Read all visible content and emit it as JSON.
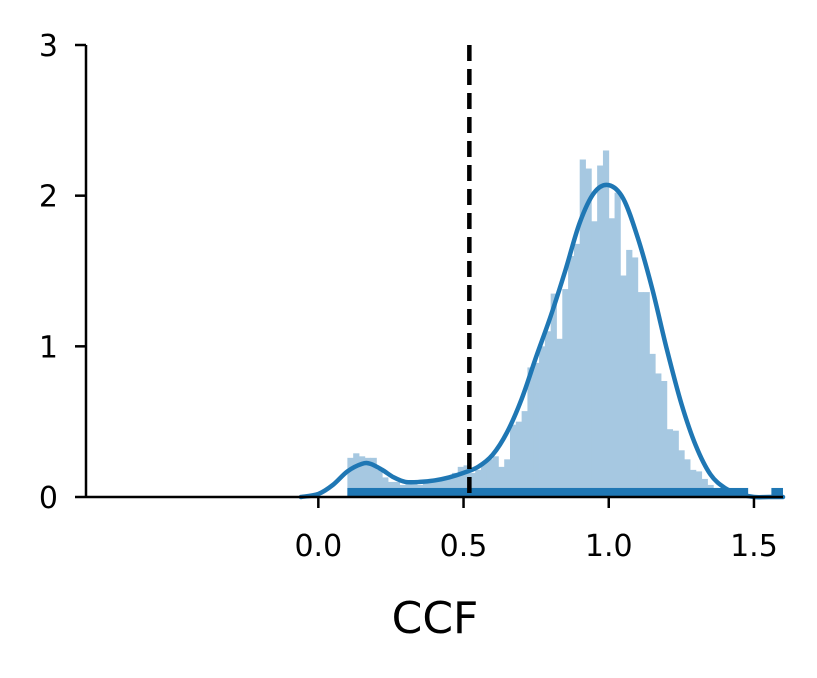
{
  "chart_data": {
    "type": "histogram",
    "title": "",
    "xlabel": "CCF",
    "ylabel": "",
    "xlim": [
      -0.8,
      1.6
    ],
    "ylim": [
      0,
      3
    ],
    "x_ticks": [
      0.0,
      0.5,
      1.0,
      1.5
    ],
    "x_tick_labels": [
      "0.0",
      "0.5",
      "1.0",
      "1.5"
    ],
    "y_ticks": [
      0,
      1,
      2,
      3
    ],
    "y_tick_labels": [
      "0",
      "1",
      "2",
      "3"
    ],
    "grid": false,
    "legend": "none",
    "colors": {
      "hist": "#a6c8e1",
      "kde": "#1f77b4",
      "rug": "#1f77b4",
      "threshold": "#000000"
    },
    "histogram": {
      "bin_width": 0.02,
      "bins": [
        {
          "x": 0.1,
          "y": 0.26
        },
        {
          "x": 0.12,
          "y": 0.29
        },
        {
          "x": 0.14,
          "y": 0.27
        },
        {
          "x": 0.16,
          "y": 0.26
        },
        {
          "x": 0.18,
          "y": 0.26
        },
        {
          "x": 0.2,
          "y": 0.18
        },
        {
          "x": 0.22,
          "y": 0.13
        },
        {
          "x": 0.24,
          "y": 0.1
        },
        {
          "x": 0.26,
          "y": 0.1
        },
        {
          "x": 0.28,
          "y": 0.08
        },
        {
          "x": 0.3,
          "y": 0.09
        },
        {
          "x": 0.32,
          "y": 0.1
        },
        {
          "x": 0.34,
          "y": 0.08
        },
        {
          "x": 0.36,
          "y": 0.1
        },
        {
          "x": 0.38,
          "y": 0.12
        },
        {
          "x": 0.4,
          "y": 0.11
        },
        {
          "x": 0.42,
          "y": 0.12
        },
        {
          "x": 0.44,
          "y": 0.12
        },
        {
          "x": 0.46,
          "y": 0.16
        },
        {
          "x": 0.48,
          "y": 0.2
        },
        {
          "x": 0.5,
          "y": 0.21
        },
        {
          "x": 0.52,
          "y": 0.16
        },
        {
          "x": 0.54,
          "y": 0.18
        },
        {
          "x": 0.56,
          "y": 0.23
        },
        {
          "x": 0.58,
          "y": 0.25
        },
        {
          "x": 0.6,
          "y": 0.27
        },
        {
          "x": 0.62,
          "y": 0.2
        },
        {
          "x": 0.64,
          "y": 0.25
        },
        {
          "x": 0.66,
          "y": 0.48
        },
        {
          "x": 0.68,
          "y": 0.5
        },
        {
          "x": 0.7,
          "y": 0.57
        },
        {
          "x": 0.72,
          "y": 0.86
        },
        {
          "x": 0.74,
          "y": 0.89
        },
        {
          "x": 0.76,
          "y": 1.0
        },
        {
          "x": 0.78,
          "y": 1.1
        },
        {
          "x": 0.8,
          "y": 1.35
        },
        {
          "x": 0.82,
          "y": 1.05
        },
        {
          "x": 0.84,
          "y": 1.38
        },
        {
          "x": 0.86,
          "y": 1.6
        },
        {
          "x": 0.88,
          "y": 1.68
        },
        {
          "x": 0.9,
          "y": 2.24
        },
        {
          "x": 0.92,
          "y": 2.18
        },
        {
          "x": 0.94,
          "y": 1.83
        },
        {
          "x": 0.96,
          "y": 2.2
        },
        {
          "x": 0.98,
          "y": 2.3
        },
        {
          "x": 1.0,
          "y": 1.85
        },
        {
          "x": 1.02,
          "y": 2.02
        },
        {
          "x": 1.04,
          "y": 1.47
        },
        {
          "x": 1.06,
          "y": 1.64
        },
        {
          "x": 1.08,
          "y": 1.59
        },
        {
          "x": 1.1,
          "y": 1.36
        },
        {
          "x": 1.12,
          "y": 1.36
        },
        {
          "x": 1.14,
          "y": 0.95
        },
        {
          "x": 1.16,
          "y": 0.82
        },
        {
          "x": 1.18,
          "y": 0.77
        },
        {
          "x": 1.2,
          "y": 0.45
        },
        {
          "x": 1.22,
          "y": 0.44
        },
        {
          "x": 1.24,
          "y": 0.31
        },
        {
          "x": 1.26,
          "y": 0.25
        },
        {
          "x": 1.28,
          "y": 0.18
        },
        {
          "x": 1.3,
          "y": 0.17
        },
        {
          "x": 1.32,
          "y": 0.12
        },
        {
          "x": 1.34,
          "y": 0.08
        },
        {
          "x": 1.36,
          "y": 0.06
        },
        {
          "x": 1.38,
          "y": 0.05
        },
        {
          "x": 1.4,
          "y": 0.04
        },
        {
          "x": 1.42,
          "y": 0.03
        },
        {
          "x": 1.44,
          "y": 0.02
        },
        {
          "x": 1.46,
          "y": 0.02
        }
      ]
    },
    "kde": {
      "x": [
        -0.06,
        0.0,
        0.05,
        0.1,
        0.15,
        0.18,
        0.22,
        0.26,
        0.3,
        0.35,
        0.4,
        0.45,
        0.5,
        0.55,
        0.6,
        0.65,
        0.7,
        0.75,
        0.8,
        0.85,
        0.9,
        0.95,
        1.0,
        1.05,
        1.1,
        1.15,
        1.2,
        1.25,
        1.3,
        1.35,
        1.4,
        1.45,
        1.5,
        1.55,
        1.6
      ],
      "y": [
        0.0,
        0.02,
        0.08,
        0.17,
        0.22,
        0.22,
        0.18,
        0.13,
        0.1,
        0.1,
        0.11,
        0.13,
        0.16,
        0.2,
        0.28,
        0.43,
        0.65,
        0.93,
        1.2,
        1.5,
        1.82,
        2.02,
        2.07,
        1.98,
        1.72,
        1.38,
        0.98,
        0.62,
        0.34,
        0.15,
        0.06,
        0.02,
        0.0,
        0.0,
        0.0
      ]
    },
    "rug": {
      "y": 0.06,
      "segments": [
        [
          0.1,
          1.48
        ],
        [
          1.56,
          1.6
        ]
      ]
    },
    "threshold_line": {
      "x": 0.52,
      "style": "dashed"
    }
  }
}
